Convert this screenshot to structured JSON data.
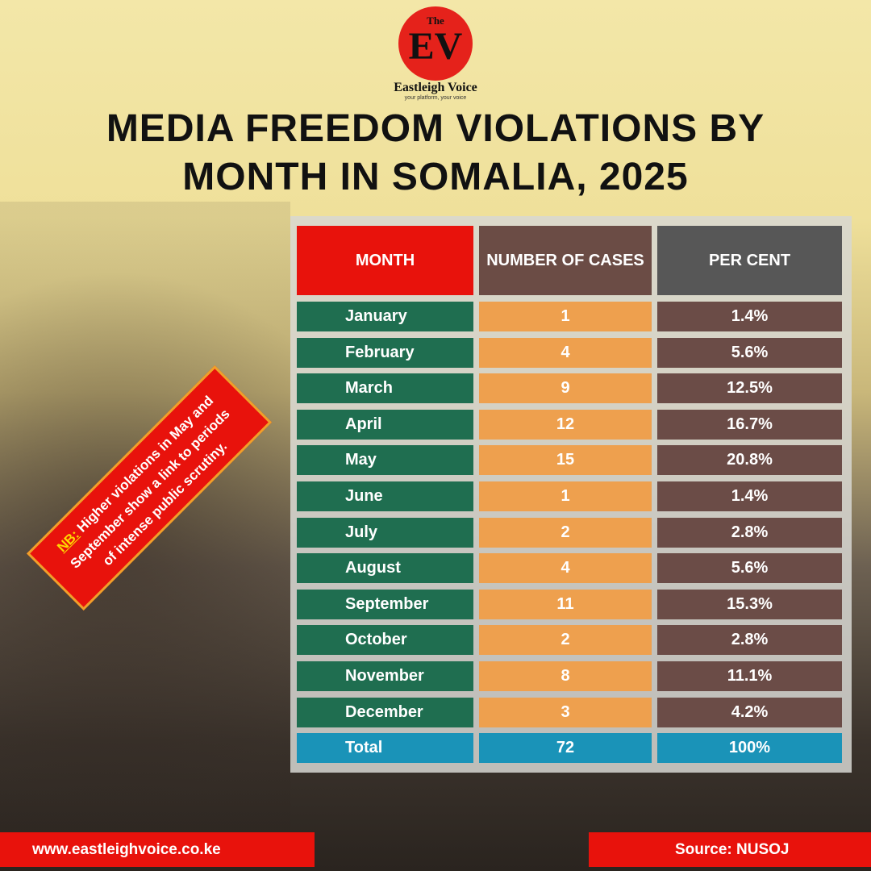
{
  "logo": {
    "small": "The",
    "mark": "EV",
    "name": "Eastleigh Voice",
    "tagline": "your platform, your voice"
  },
  "title": [
    "MEDIA FREEDOM VIOLATIONS BY",
    "MONTH IN SOMALIA, 2025"
  ],
  "table": {
    "headers": [
      "MONTH",
      "NUMBER OF CASES",
      "PER CENT"
    ],
    "rows": [
      [
        "January",
        "1",
        "1.4%"
      ],
      [
        "February",
        "4",
        "5.6%"
      ],
      [
        "March",
        "9",
        "12.5%"
      ],
      [
        "April",
        "12",
        "16.7%"
      ],
      [
        "May",
        "15",
        "20.8%"
      ],
      [
        "June",
        "1",
        "1.4%"
      ],
      [
        "July",
        "2",
        "2.8%"
      ],
      [
        "August",
        "4",
        "5.6%"
      ],
      [
        "September",
        "11",
        "15.3%"
      ],
      [
        "October",
        "2",
        "2.8%"
      ],
      [
        "November",
        "8",
        "11.1%"
      ],
      [
        "December",
        "3",
        "4.2%"
      ]
    ],
    "total": [
      "Total",
      "72",
      "100%"
    ]
  },
  "note": {
    "label": "NB:",
    "lines": [
      "Higher violations in May and",
      "September show a link to periods",
      "of intense public scrutiny."
    ]
  },
  "footer": {
    "website": "www.eastleighvoice.co.ke",
    "source": "Source: NUSOJ"
  }
}
